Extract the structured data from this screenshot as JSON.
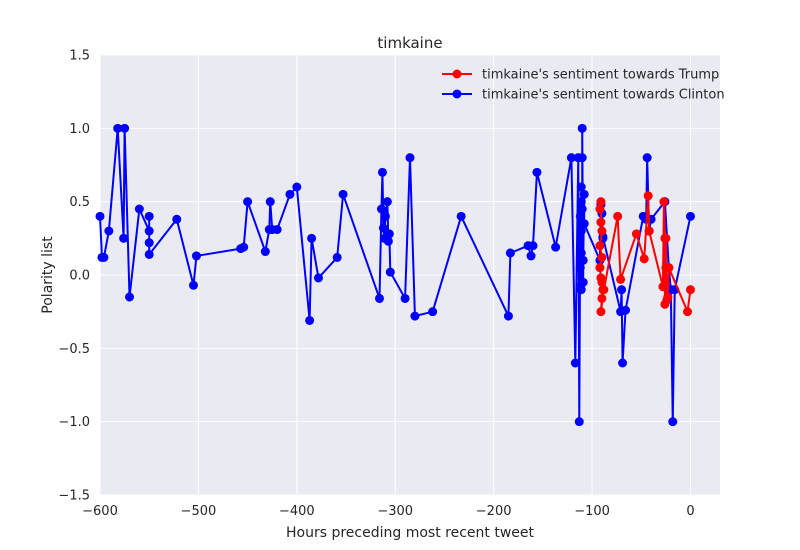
{
  "chart_data": {
    "type": "line",
    "title": "timkaine",
    "xlabel": "Hours preceding most recent tweet",
    "ylabel": "Polarity list",
    "xlim": [
      -600,
      30
    ],
    "ylim": [
      -1.5,
      1.5
    ],
    "xticks": [
      -600,
      -500,
      -400,
      -300,
      -200,
      -100,
      0
    ],
    "yticks": [
      -1.5,
      -1.0,
      -0.5,
      0.0,
      0.5,
      1.0,
      1.5
    ],
    "xtick_labels": [
      "−600",
      "−500",
      "−400",
      "−300",
      "−200",
      "−100",
      "0"
    ],
    "ytick_labels": [
      "−1.5",
      "−1.0",
      "−0.5",
      "0.0",
      "0.5",
      "1.0",
      "1.5"
    ],
    "grid": true,
    "legend_position": "top-right",
    "series": [
      {
        "name": "timkaine's sentiment towards Trump",
        "color": "#ff0000",
        "x": [
          -92,
          -91,
          -91,
          -90,
          -92,
          -90,
          -92,
          -91,
          -90,
          -89,
          -90,
          -91,
          -88,
          -74,
          -71,
          -55,
          -47,
          -43,
          -42,
          -28,
          -27,
          -26,
          -26,
          -25,
          -25,
          -24,
          -23,
          -22,
          -3,
          0
        ],
        "y": [
          0.45,
          0.5,
          0.36,
          0.3,
          0.2,
          0.12,
          0.05,
          -0.02,
          -0.05,
          -0.1,
          -0.16,
          -0.25,
          -0.1,
          0.4,
          -0.03,
          0.28,
          0.11,
          0.54,
          0.3,
          -0.08,
          0.5,
          0.25,
          -0.2,
          0.05,
          0.25,
          -0.17,
          -0.15,
          0.05,
          -0.25,
          -0.1
        ]
      },
      {
        "name": "timkaine's sentiment towards Clinton",
        "color": "#0000ff",
        "x": [
          -600,
          -598,
          -596,
          -591,
          -582,
          -576,
          -575,
          -570,
          -560,
          -550,
          -550,
          -550,
          -550,
          -522,
          -505,
          -502,
          -457,
          -454,
          -450,
          -432,
          -428,
          -427,
          -425,
          -420,
          -407,
          -400,
          -387,
          -385,
          -378,
          -359,
          -353,
          -316,
          -314,
          -313,
          -312,
          -311,
          -310,
          -308,
          -307,
          -306,
          -305,
          -290,
          -285,
          -280,
          -262,
          -233,
          -185,
          -183,
          -165,
          -162,
          -160,
          -156,
          -137,
          -121,
          -117,
          -114,
          -113,
          -112,
          -112,
          -112,
          -111,
          -111,
          -111,
          -111,
          -111,
          -110,
          -110,
          -110,
          -109,
          -109,
          -108,
          -108,
          -92,
          -91,
          -90,
          -89,
          -89,
          -71,
          -70,
          -69,
          -66,
          -48,
          -45,
          -44,
          -42,
          -40,
          -26,
          -22,
          -20,
          -18,
          -16,
          0
        ],
        "y": [
          0.4,
          0.12,
          0.12,
          0.3,
          1.0,
          0.25,
          1.0,
          -0.15,
          0.45,
          0.3,
          0.4,
          0.22,
          0.14,
          0.38,
          -0.07,
          0.13,
          0.18,
          0.19,
          0.5,
          0.16,
          0.31,
          0.5,
          0.31,
          0.31,
          0.55,
          0.6,
          -0.31,
          0.25,
          -0.02,
          0.12,
          0.55,
          -0.16,
          0.45,
          0.7,
          0.32,
          0.25,
          0.4,
          0.5,
          0.23,
          0.28,
          0.02,
          -0.16,
          0.8,
          -0.28,
          -0.25,
          0.4,
          -0.28,
          0.15,
          0.2,
          0.13,
          0.2,
          0.7,
          0.19,
          0.8,
          -0.6,
          0.8,
          -1.0,
          0.4,
          0.05,
          -0.08,
          0.15,
          0.5,
          0.6,
          -0.1,
          0.3,
          0.45,
          0.8,
          1.0,
          -0.05,
          0.1,
          0.55,
          0.35,
          0.1,
          0.48,
          0.42,
          0.25,
          0.26,
          -0.25,
          -0.1,
          -0.6,
          -0.24,
          0.4,
          0.38,
          0.8,
          0.3,
          0.38,
          0.5,
          0.05,
          -0.1,
          -1.0,
          -0.1,
          0.4
        ]
      }
    ]
  }
}
